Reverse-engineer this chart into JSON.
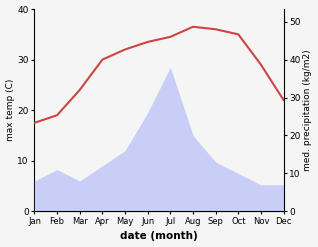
{
  "months": [
    "Jan",
    "Feb",
    "Mar",
    "Apr",
    "May",
    "Jun",
    "Jul",
    "Aug",
    "Sep",
    "Oct",
    "Nov",
    "Dec"
  ],
  "temperature": [
    17.5,
    19.0,
    24.0,
    30.0,
    32.0,
    33.5,
    34.5,
    36.5,
    36.0,
    35.0,
    29.0,
    22.0
  ],
  "precipitation": [
    8,
    11,
    8,
    12,
    16,
    26,
    38,
    20,
    13,
    10,
    7,
    7
  ],
  "temp_color": "#cc4444",
  "precip_fill_color": "#c8cef5",
  "temp_ylim": [
    0,
    40
  ],
  "precip_ylim": [
    0,
    53.33
  ],
  "temp_yticks": [
    0,
    10,
    20,
    30,
    40
  ],
  "precip_yticks": [
    0,
    10,
    20,
    30,
    40,
    50
  ],
  "xlabel": "date (month)",
  "ylabel_left": "max temp (C)",
  "ylabel_right": "med. precipitation (kg/m2)",
  "figsize": [
    3.18,
    2.47
  ],
  "dpi": 100
}
